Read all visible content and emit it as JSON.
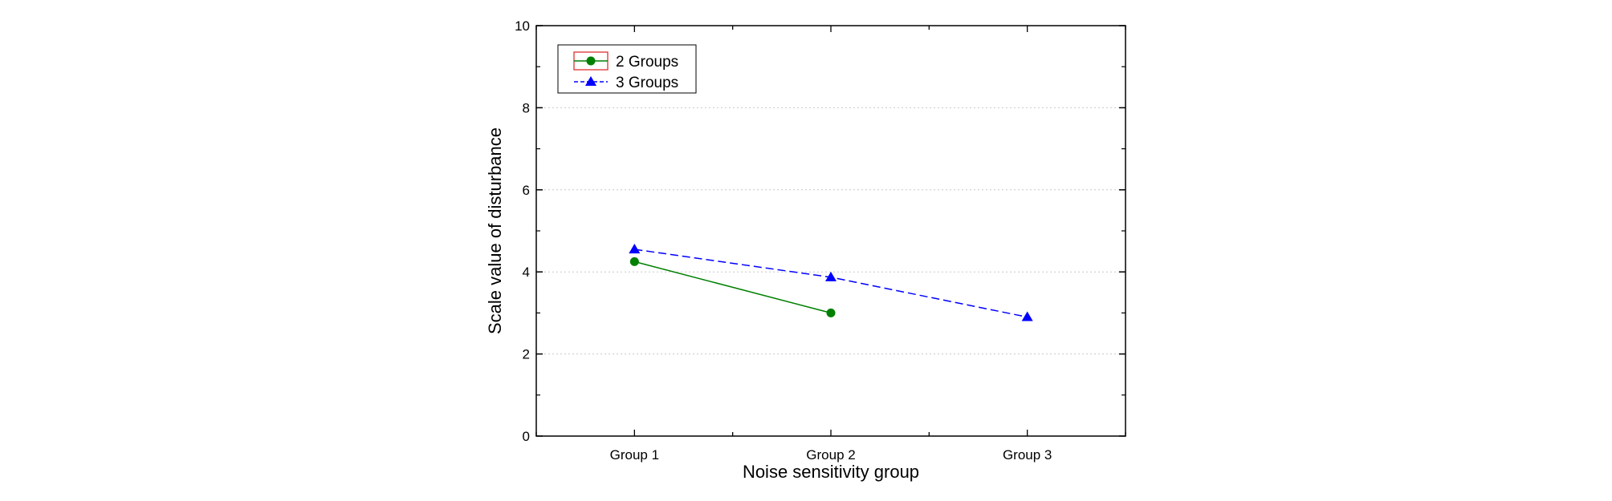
{
  "chart_data": {
    "type": "line",
    "title": "",
    "xlabel": "Noise sensitivity group",
    "ylabel": "Scale value of disturbance",
    "categories": [
      "Group 1",
      "Group 2",
      "Group 3"
    ],
    "ylim": [
      0,
      10
    ],
    "yticks": [
      "0",
      "2",
      "4",
      "6",
      "8",
      "10"
    ],
    "grid": "horizontal dotted",
    "legend_position": "top-left",
    "series": [
      {
        "name": "2 Groups",
        "values": [
          4.25,
          3.0,
          null
        ],
        "color": "#008000",
        "line_style": "solid",
        "marker": "circle",
        "legend_frame_color": "#e03030"
      },
      {
        "name": "3 Groups",
        "values": [
          4.55,
          3.87,
          2.9
        ],
        "color": "#0000ff",
        "line_style": "dashed",
        "marker": "triangle"
      }
    ]
  }
}
